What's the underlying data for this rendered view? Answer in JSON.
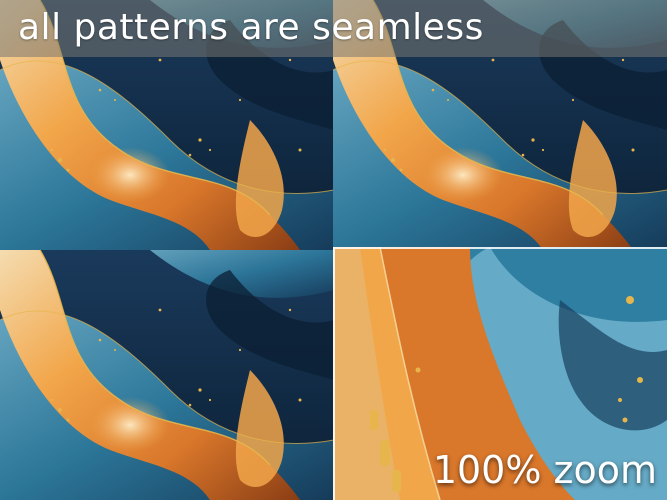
{
  "header": {
    "title": "all patterns are seamless"
  },
  "zoom_panel": {
    "label": "100% zoom"
  },
  "colors": {
    "navy": "#0f2740",
    "teal": "#2f7fa3",
    "sky": "#6fb2cc",
    "orange": "#d9772b",
    "amber": "#f2a64a",
    "cream": "#f4dcb0",
    "gold": "#e6b64c"
  }
}
